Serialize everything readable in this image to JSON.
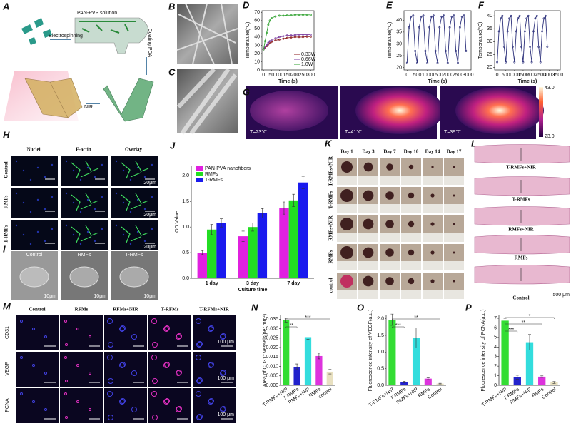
{
  "panel_labels": [
    "A",
    "B",
    "C",
    "D",
    "E",
    "F",
    "G",
    "H",
    "I",
    "J",
    "K",
    "L",
    "M",
    "N",
    "O",
    "P"
  ],
  "schematic": {
    "texts": [
      "PAN-PVP solution",
      "Electrospinning",
      "Coating PDA",
      "NIR"
    ]
  },
  "thermal": {
    "labels": [
      "T=23℃",
      "T=41℃",
      "T=39℃"
    ],
    "scale_max": "43.0",
    "scale_min": "23.0"
  },
  "fluorescence": {
    "columns": [
      "Nuclei",
      "F-actin",
      "Overlay"
    ],
    "rows": [
      "Control",
      "RMFs",
      "T-RMFs"
    ],
    "scale": "20μm"
  },
  "sem_cells": {
    "labels": [
      "Control",
      "RMFs",
      "T-RMFs"
    ],
    "scale": "10μm"
  },
  "wound": {
    "days": [
      "Day 1",
      "Day 3",
      "Day 7",
      "Day 10",
      "Day 14",
      "Day 17"
    ],
    "rows": [
      "T-RMFs+NIR",
      "T-RMFs",
      "RMFs+NIR",
      "RMFs",
      "control"
    ]
  },
  "histology": {
    "labels": [
      "T-RMFs+NIR",
      "T-RMFs",
      "RMFs+NIR",
      "RMFs",
      "Control"
    ],
    "scale": "500 μm"
  },
  "staining": {
    "columns": [
      "Control",
      "RFMs",
      "RFMs+NIR",
      "T-RFMs",
      "T-RFMs+NIR"
    ],
    "rows": [
      "CD31",
      "VEGF",
      "PCNA"
    ],
    "scale": "100 μm"
  },
  "chart_data": [
    {
      "type": "line",
      "x_label": "Time (s)",
      "y_label": "Temperature(°C)",
      "x": [
        0,
        10,
        20,
        30,
        40,
        50,
        75,
        100,
        125,
        150,
        175,
        200,
        225,
        250,
        275,
        300
      ],
      "series": [
        {
          "name": "0.33W",
          "color": "#8b1a1a",
          "values": [
            25,
            27,
            29,
            31,
            33,
            34,
            36,
            37,
            38,
            39,
            39.5,
            40,
            40,
            40,
            40.5,
            40.5
          ]
        },
        {
          "name": "0.66W",
          "color": "#7b3fa0",
          "values": [
            25,
            28,
            30,
            33,
            35,
            36,
            38.5,
            40,
            41,
            42,
            42,
            42.5,
            43,
            43,
            43,
            43
          ]
        },
        {
          "name": "1.0W",
          "color": "#2ca02c",
          "values": [
            25,
            35,
            45,
            55,
            60,
            63,
            65,
            66,
            66,
            66.5,
            66.5,
            67,
            67,
            67,
            67,
            67
          ]
        }
      ],
      "xlim": [
        -10,
        320
      ],
      "xticks": [
        0,
        50,
        100,
        150,
        200,
        250,
        300
      ],
      "ylim": [
        0,
        72
      ],
      "yticks": [
        0,
        10,
        20,
        30,
        40,
        50,
        60,
        70
      ],
      "legend": "lower right"
    },
    {
      "type": "line",
      "x_label": "Time (s)",
      "y_label": "Temperature(°C)",
      "x": [
        0,
        100,
        200,
        300,
        400,
        500,
        600,
        700,
        800,
        900,
        1000,
        1100,
        1200,
        1300,
        1400,
        1500,
        1600,
        1700,
        1800,
        1900,
        2000,
        2100,
        2200,
        2300,
        2400,
        2500,
        2600,
        2700,
        2800,
        2900
      ],
      "series": [
        {
          "color": "#2b2f7a",
          "values": [
            22,
            37,
            41.5,
            42,
            27,
            22,
            37,
            41.5,
            42,
            27,
            22,
            37,
            41.5,
            42,
            27,
            22,
            37,
            41.5,
            42,
            27,
            22,
            37,
            41.5,
            42,
            27,
            22,
            37,
            41.5,
            42,
            27
          ]
        }
      ],
      "xlim": [
        -150,
        3150
      ],
      "xticks": [
        0,
        500,
        1000,
        1500,
        2000,
        2500,
        3000
      ],
      "ylim": [
        19,
        44
      ],
      "yticks": [
        20,
        25,
        30,
        35,
        40
      ]
    },
    {
      "type": "line",
      "x_label": "Time (s)",
      "y_label": "Temperature(°C)",
      "x": [
        0,
        100,
        200,
        300,
        400,
        500,
        600,
        700,
        800,
        900,
        1000,
        1100,
        1200,
        1300,
        1400,
        1500,
        1600,
        1700,
        1800,
        1900,
        2000,
        2100,
        2200,
        2300,
        2400,
        2500,
        2600,
        2700,
        2800,
        2900
      ],
      "series": [
        {
          "color": "#2b2f7a",
          "values": [
            22,
            34,
            39,
            40,
            28,
            22,
            34,
            39,
            40,
            28,
            22,
            34,
            39,
            40,
            28,
            22,
            34,
            39,
            40,
            28,
            22,
            34,
            39,
            40,
            28,
            22,
            34,
            39,
            40,
            28
          ]
        }
      ],
      "xlim": [
        -150,
        3650
      ],
      "xticks": [
        0,
        500,
        1000,
        1500,
        2000,
        2500,
        3000,
        3500
      ],
      "ylim": [
        19,
        42
      ],
      "yticks": [
        20,
        25,
        30,
        35,
        40
      ]
    },
    {
      "type": "bar",
      "x_label": "Culture time",
      "y_label": "OD Value",
      "categories": [
        "1 day",
        "3 day",
        "7 day"
      ],
      "series": [
        {
          "name": "PAN-PVA nanofibers",
          "color": "#e020e0",
          "values": [
            0.5,
            0.82,
            1.37
          ],
          "errors": [
            0.04,
            0.1,
            0.12
          ]
        },
        {
          "name": "RMFs",
          "color": "#22dd22",
          "values": [
            0.95,
            1.0,
            1.52
          ],
          "errors": [
            0.1,
            0.08,
            0.12
          ]
        },
        {
          "name": "T-RMFs",
          "color": "#1a1aee",
          "values": [
            1.08,
            1.27,
            1.87
          ],
          "errors": [
            0.08,
            0.09,
            0.12
          ]
        }
      ],
      "ylim": [
        0,
        2.2
      ],
      "yticks": [
        {
          "value": 0,
          "label": "0.0"
        },
        {
          "value": 0.5,
          "label": "0.5"
        },
        {
          "value": 1,
          "label": "1.0"
        },
        {
          "value": 1.5,
          "label": "1.5"
        },
        {
          "value": 2,
          "label": "2.0"
        }
      ],
      "legend": "upper left"
    },
    {
      "type": "bar",
      "y_label": "Area of CD31⁺ vessels(per mm²)",
      "categories": [
        "T-RMFs+NIR",
        "T-RMFs",
        "RMFs+NIR",
        "RMFs",
        "control"
      ],
      "values": [
        0.0345,
        0.0098,
        0.0255,
        0.0155,
        0.0072
      ],
      "errors": [
        0.001,
        0.0015,
        0.0012,
        0.0015,
        0.0012
      ],
      "colors": [
        "#33dd33",
        "#2222cc",
        "#33dddd",
        "#dd33dd",
        "#e8e0c0"
      ],
      "ylim": [
        0,
        0.037
      ],
      "yticks": [
        {
          "value": 0,
          "label": "0.000"
        },
        {
          "value": 0.005,
          "label": "0.005"
        },
        {
          "value": 0.01,
          "label": "0.010"
        },
        {
          "value": 0.015,
          "label": "0.015"
        },
        {
          "value": 0.02,
          "label": "0.020"
        },
        {
          "value": 0.025,
          "label": "0.025"
        },
        {
          "value": 0.03,
          "label": "0.030"
        },
        {
          "value": 0.035,
          "label": "0.035"
        }
      ],
      "annotations": [
        "**",
        "***"
      ]
    },
    {
      "type": "bar",
      "y_label": "Fluorescence intensity of VEGF(a.u.)",
      "categories": [
        "T-RMFs+NIR",
        "T-RMFs",
        "RMFs+NIR",
        "RMFs",
        "Control"
      ],
      "values": [
        1.97,
        0.1,
        1.43,
        0.2,
        0.05
      ],
      "errors": [
        0.17,
        0.02,
        0.3,
        0.03,
        0.01
      ],
      "colors": [
        "#33dd33",
        "#2222cc",
        "#33dddd",
        "#dd33dd",
        "#e8e0c0"
      ],
      "ylim": [
        0,
        2.1
      ],
      "yticks": [
        {
          "value": 0,
          "label": "0.0"
        },
        {
          "value": 0.5,
          "label": "0.5"
        },
        {
          "value": 1,
          "label": "1.0"
        },
        {
          "value": 1.5,
          "label": "1.5"
        },
        {
          "value": 2,
          "label": "2.0"
        }
      ],
      "annotations": [
        "***",
        "**"
      ]
    },
    {
      "type": "bar",
      "y_label": "Fluorescence intensity of PCNA(a.u.)",
      "categories": [
        "T-RMFs+NIR",
        "T-RMFs",
        "RMFs+NIR",
        "RMFs",
        "Control"
      ],
      "values": [
        6.75,
        0.85,
        4.5,
        0.9,
        0.3
      ],
      "errors": [
        0.25,
        0.2,
        0.8,
        0.08,
        0.1
      ],
      "colors": [
        "#33dd33",
        "#2222cc",
        "#33dddd",
        "#dd33dd",
        "#e8e0c0"
      ],
      "ylim": [
        0,
        7.3
      ],
      "yticks": [
        0,
        1,
        2,
        3,
        4,
        5,
        6,
        7
      ],
      "annotations": [
        "***",
        "**",
        "*"
      ]
    }
  ]
}
